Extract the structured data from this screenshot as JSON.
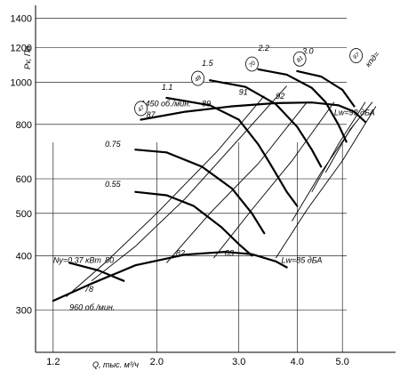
{
  "chart_data": {
    "type": "line",
    "title": "",
    "xlabel": "Q, тыс. м³/ч",
    "ylabel": "Pv, Па",
    "x_scale": "log",
    "y_scale": "log",
    "xlim": [
      1.1,
      6.5
    ],
    "ylim": [
      240,
      1500
    ],
    "grid": true,
    "x_ticks": [
      {
        "value": 1.2,
        "label": "1.2"
      },
      {
        "value": 2.0,
        "label": "2.0"
      },
      {
        "value": 3.0,
        "label": "3.0"
      },
      {
        "value": 4.0,
        "label": "4.0"
      },
      {
        "value": 5.0,
        "label": "5.0"
      }
    ],
    "y_ticks": [
      {
        "value": 300,
        "label": "300"
      },
      {
        "value": 400,
        "label": "400"
      },
      {
        "value": 500,
        "label": "500"
      },
      {
        "value": 600,
        "label": "600"
      },
      {
        "value": 800,
        "label": "800"
      },
      {
        "value": 1000,
        "label": "1000"
      },
      {
        "value": 1200,
        "label": "1200"
      },
      {
        "value": 1400,
        "label": "1400"
      }
    ],
    "y_label_offsets": [
      {
        "value": 900,
        "label": "800"
      },
      {
        "value": 1100,
        "label": "1000"
      }
    ],
    "series": [
      {
        "name": "1450 об./мин.",
        "points": [
          [
            1.85,
            820
          ],
          [
            2.3,
            855
          ],
          [
            2.9,
            880
          ],
          [
            3.6,
            895
          ],
          [
            4.3,
            898
          ],
          [
            4.9,
            885
          ],
          [
            5.3,
            855
          ],
          [
            5.6,
            810
          ]
        ]
      },
      {
        "name": "960 об./мин.",
        "points": [
          [
            1.2,
            315
          ],
          [
            1.45,
            345
          ],
          [
            1.8,
            380
          ],
          [
            2.3,
            402
          ],
          [
            2.8,
            408
          ],
          [
            3.2,
            403
          ],
          [
            3.6,
            388
          ],
          [
            3.8,
            376
          ]
        ]
      },
      {
        "name": "0.75",
        "points": [
          [
            1.8,
            700
          ],
          [
            2.1,
            690
          ],
          [
            2.5,
            640
          ],
          [
            2.9,
            570
          ],
          [
            3.2,
            500
          ],
          [
            3.4,
            450
          ]
        ]
      },
      {
        "name": "0.55",
        "points": [
          [
            1.8,
            560
          ],
          [
            2.1,
            550
          ],
          [
            2.4,
            520
          ],
          [
            2.75,
            465
          ],
          [
            3.0,
            425
          ],
          [
            3.2,
            400
          ]
        ]
      },
      {
        "name": "Ny=0.37 кВт",
        "points": [
          [
            1.3,
            385
          ],
          [
            1.5,
            370
          ],
          [
            1.7,
            350
          ]
        ]
      },
      {
        "name": "1.1",
        "points": [
          [
            2.1,
            920
          ],
          [
            2.6,
            885
          ],
          [
            3.0,
            820
          ],
          [
            3.3,
            720
          ],
          [
            3.5,
            650
          ],
          [
            3.8,
            560
          ],
          [
            4.0,
            520
          ]
        ]
      },
      {
        "name": "1.5",
        "points": [
          [
            2.6,
            1010
          ],
          [
            3.1,
            975
          ],
          [
            3.6,
            890
          ],
          [
            4.0,
            790
          ],
          [
            4.3,
            700
          ],
          [
            4.5,
            640
          ]
        ]
      },
      {
        "name": "2.2",
        "points": [
          [
            3.3,
            1070
          ],
          [
            3.8,
            1040
          ],
          [
            4.3,
            970
          ],
          [
            4.6,
            900
          ],
          [
            4.9,
            800
          ],
          [
            5.1,
            730
          ]
        ]
      },
      {
        "name": "3.0",
        "points": [
          [
            4.0,
            1060
          ],
          [
            4.5,
            1030
          ],
          [
            5.0,
            960
          ],
          [
            5.3,
            880
          ]
        ]
      }
    ],
    "efficiency_lines": [
      {
        "label": "78",
        "points": [
          [
            1.28,
            322
          ],
          [
            1.55,
            385
          ],
          [
            2.0,
            500
          ],
          [
            2.7,
            695
          ],
          [
            3.4,
            930
          ]
        ]
      },
      {
        "label": "80",
        "points": [
          [
            1.45,
            350
          ],
          [
            1.8,
            420
          ],
          [
            2.3,
            540
          ],
          [
            3.0,
            740
          ],
          [
            3.8,
            980
          ]
        ]
      },
      {
        "label": "82",
        "points": [
          [
            2.1,
            385
          ],
          [
            2.6,
            500
          ],
          [
            3.3,
            650
          ],
          [
            4.2,
            900
          ]
        ]
      },
      {
        "label": "83",
        "points": [
          [
            2.65,
            395
          ],
          [
            3.2,
            510
          ],
          [
            3.9,
            660
          ],
          [
            4.8,
            900
          ]
        ]
      },
      {
        "label": "87",
        "points": [
          [
            3.6,
            395
          ],
          [
            4.2,
            510
          ],
          [
            5.0,
            660
          ],
          [
            5.9,
            880
          ]
        ]
      },
      {
        "label": "89",
        "points": [
          [
            3.9,
            480
          ],
          [
            4.5,
            620
          ],
          [
            5.3,
            800
          ]
        ]
      },
      {
        "label": "91",
        "points": [
          [
            4.3,
            560
          ],
          [
            4.9,
            720
          ],
          [
            5.6,
            900
          ]
        ]
      },
      {
        "label": "92",
        "points": [
          [
            4.6,
            620
          ],
          [
            5.2,
            780
          ],
          [
            5.8,
            900
          ]
        ]
      }
    ],
    "annotations": [
      {
        "text": "1450 об./мин.",
        "x": 1.85,
        "y": 880
      },
      {
        "text": "960 об./мин.",
        "x": 1.3,
        "y": 300
      },
      {
        "text": "0.75",
        "x": 1.55,
        "y": 710
      },
      {
        "text": "0.55",
        "x": 1.55,
        "y": 575
      },
      {
        "text": "Ny=0.37 кВт",
        "x": 1.2,
        "y": 385
      },
      {
        "text": "1.1",
        "x": 2.05,
        "y": 960
      },
      {
        "text": "1.5",
        "x": 2.5,
        "y": 1090
      },
      {
        "text": "2.2",
        "x": 3.3,
        "y": 1180
      },
      {
        "text": "3.0",
        "x": 4.1,
        "y": 1160
      },
      {
        "text": "78",
        "x": 1.4,
        "y": 330
      },
      {
        "text": "80",
        "x": 1.55,
        "y": 385
      },
      {
        "text": "82",
        "x": 2.2,
        "y": 400
      },
      {
        "text": "83",
        "x": 2.8,
        "y": 400
      },
      {
        "text": "87",
        "x": 1.9,
        "y": 830
      },
      {
        "text": "89",
        "x": 2.5,
        "y": 880
      },
      {
        "text": "91",
        "x": 3.0,
        "y": 935
      },
      {
        "text": "92",
        "x": 3.6,
        "y": 915
      },
      {
        "text": "Lw=93 дБА",
        "x": 4.8,
        "y": 840
      },
      {
        "text": "Lw=85 дБА",
        "x": 3.7,
        "y": 385
      }
    ],
    "circle_labels": [
      {
        "text": "47",
        "x": 1.85,
        "y": 870
      },
      {
        "text": "48",
        "x": 2.45,
        "y": 1020
      },
      {
        "text": "70",
        "x": 3.2,
        "y": 1100
      },
      {
        "text": "81",
        "x": 4.05,
        "y": 1130
      },
      {
        "text": "97",
        "x": 5.35,
        "y": 1150
      }
    ],
    "kpd_label": {
      "text": "кпд=",
      "x": 5.7,
      "y": 1080
    }
  }
}
